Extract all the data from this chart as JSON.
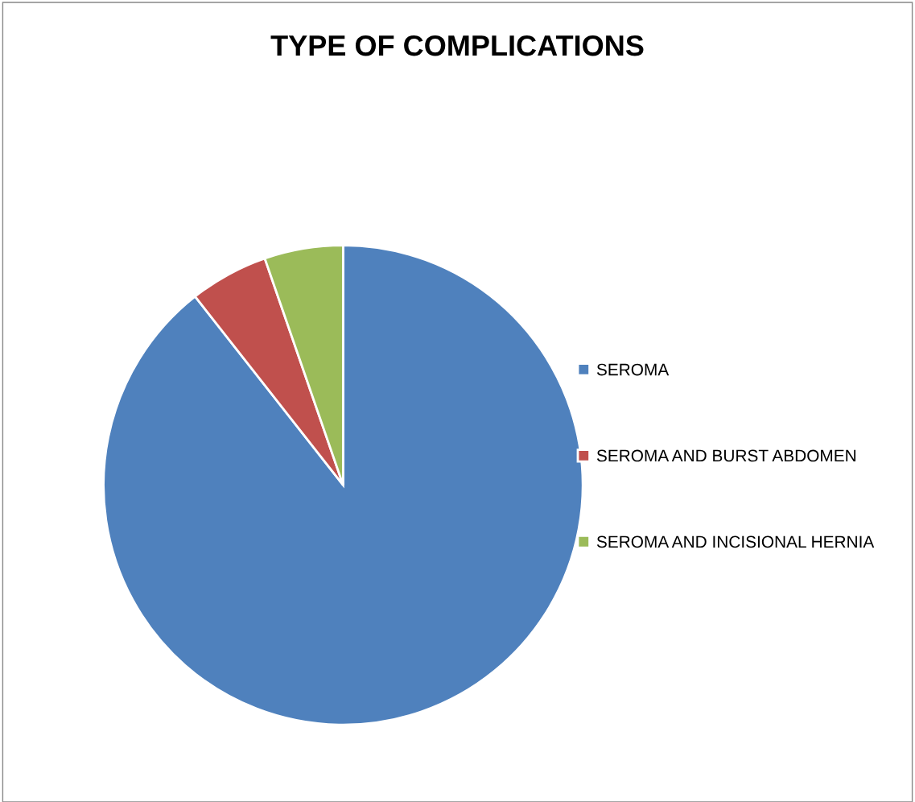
{
  "chart_data": {
    "type": "pie",
    "title": "TYPE OF COMPLICATIONS",
    "categories": [
      "SEROMA",
      "SEROMA AND BURST ABDOMEN",
      "SEROMA AND INCISIONAL HERNIA"
    ],
    "values": [
      89.4,
      5.3,
      5.3
    ],
    "colors": [
      "#4f81bd",
      "#c0504d",
      "#9bbb59"
    ],
    "legend": "right"
  }
}
